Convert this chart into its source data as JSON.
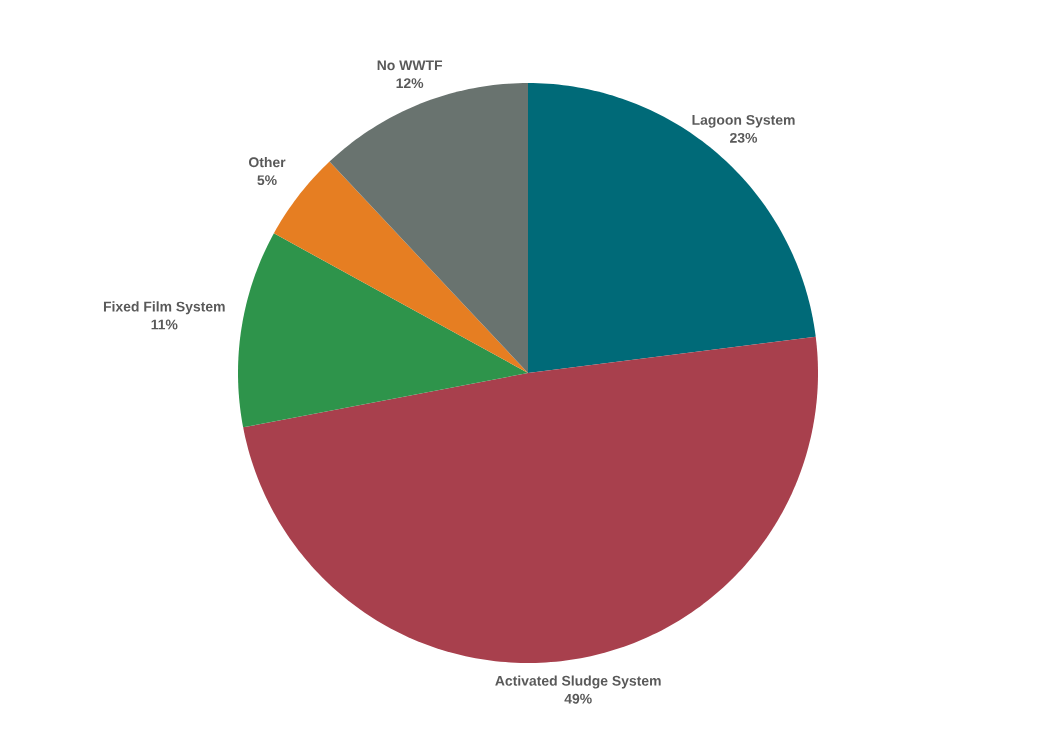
{
  "chart_data": {
    "type": "pie",
    "categories": [
      "Lagoon System",
      "Activated Sludge System",
      "Fixed Film System",
      "Other",
      "No WWTF"
    ],
    "values": [
      23,
      49,
      11,
      5,
      12
    ],
    "value_labels": [
      "23%",
      "49%",
      "11%",
      "5%",
      "12%"
    ],
    "colors": [
      "#006a78",
      "#a8404d",
      "#2e944b",
      "#e67e22",
      "#69736f"
    ]
  }
}
